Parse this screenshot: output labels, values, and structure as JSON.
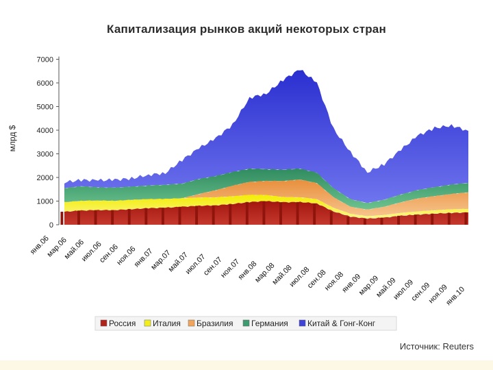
{
  "chart_data": {
    "type": "area",
    "title": "Капитализация рынков акций некоторых стран",
    "ylabel": "млрд $",
    "xlabel": "",
    "ylim": [
      0,
      7000
    ],
    "yticks": [
      "0",
      "1000",
      "2000",
      "3000",
      "4000",
      "5000",
      "6000",
      "7000"
    ],
    "x_tick_labels": [
      "янв.06",
      "мар.06",
      "май.06",
      "июл.06",
      "сен.06",
      "ноя.06",
      "янв.07",
      "мар.07",
      "май.07",
      "июл.07",
      "сен.07",
      "ноя.07",
      "янв.08",
      "мар.08",
      "май.08",
      "июл.08",
      "сен.08",
      "ноя.08",
      "янв.09",
      "мар.09",
      "май.09",
      "июл.09",
      "сен.09",
      "ноя.09",
      "янв.10"
    ],
    "stacked": true,
    "grid": false,
    "legend_position": "bottom",
    "series": [
      {
        "name": "Россия",
        "color": "#b0231a",
        "values": [
          550,
          600,
          620,
          620,
          660,
          700,
          720,
          760,
          800,
          820,
          880,
          960,
          1000,
          950,
          960,
          900,
          560,
          340,
          260,
          300,
          380,
          430,
          470,
          500,
          520
        ]
      },
      {
        "name": "Италия",
        "color": "#f2ee1c",
        "values": [
          400,
          410,
          400,
          390,
          390,
          380,
          370,
          360,
          350,
          340,
          320,
          300,
          250,
          220,
          200,
          180,
          150,
          120,
          100,
          110,
          120,
          130,
          140,
          150,
          150
        ]
      },
      {
        "name": "Бразилия",
        "color": "#f0a55a",
        "values": [
          0,
          0,
          0,
          0,
          0,
          0,
          0,
          0,
          150,
          300,
          450,
          550,
          600,
          680,
          750,
          680,
          450,
          300,
          280,
          350,
          450,
          550,
          600,
          650,
          700
        ]
      },
      {
        "name": "Германия",
        "color": "#3f9a6e",
        "values": [
          600,
          620,
          560,
          560,
          560,
          580,
          600,
          620,
          640,
          600,
          580,
          560,
          500,
          480,
          460,
          440,
          380,
          320,
          280,
          300,
          330,
          360,
          380,
          400,
          400
        ]
      },
      {
        "name": "Китай & Гонг-Конг",
        "color": "#3f43d8",
        "values": [
          250,
          260,
          300,
          330,
          350,
          450,
          500,
          1000,
          1300,
          1600,
          2000,
          3000,
          3200,
          3800,
          4200,
          3800,
          2500,
          2000,
          1300,
          1500,
          1900,
          2300,
          2500,
          2500,
          2200
        ]
      }
    ]
  },
  "source": "Источник: Reuters"
}
